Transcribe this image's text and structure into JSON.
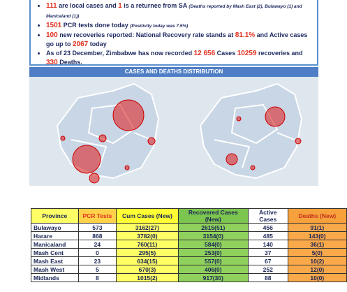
{
  "bullets": [
    [
      "111",
      " are local cases and ",
      "1",
      " is a returnee from SA ",
      "(Deaths reported by Mash East (2), Bulawayo (1) and Manicaland (1))"
    ],
    [
      "1501",
      " PCR tests done today ",
      "(Positivity today was 7.5%)"
    ],
    [
      "100",
      " new recoveries reported: National Recovery rate stands at ",
      "81.1%",
      " and Active cases go up to ",
      "2067",
      " today"
    ],
    [
      "As of 23 December, Zimbabwe has now recorded ",
      "12 656",
      " Cases ",
      "10259",
      " recoveries and ",
      "330",
      " Deaths."
    ]
  ],
  "section_title": "CASES AND DEATHS DISTRIBUTION",
  "table": {
    "header": [
      "Province",
      "PCR Tests",
      "Cum Cases (New)",
      "Recovered Cases (New)",
      "Active Cases",
      "Deaths (New)"
    ],
    "rows": [
      [
        "Bulawayo",
        "573",
        "3162(27)",
        "2615(51)",
        "456",
        "91(1)"
      ],
      [
        "Harare",
        "868",
        "3782(0)",
        "3154(0)",
        "485",
        "143(0)"
      ],
      [
        "Manicaland",
        "24",
        "760(11)",
        "584(0)",
        "140",
        "36(1)"
      ],
      [
        "Mash Cent",
        "0",
        "295(5)",
        "253(0)",
        "37",
        "5(0)"
      ],
      [
        "Mash East",
        "23",
        "634(15)",
        "557(0)",
        "67",
        "10(2)"
      ],
      [
        "Mash West",
        "5",
        "670(3)",
        "406(0)",
        "252",
        "12(0)"
      ],
      [
        "Midlands",
        "8",
        "1015(2)",
        "917(30)",
        "88",
        "10(0)"
      ]
    ]
  }
}
